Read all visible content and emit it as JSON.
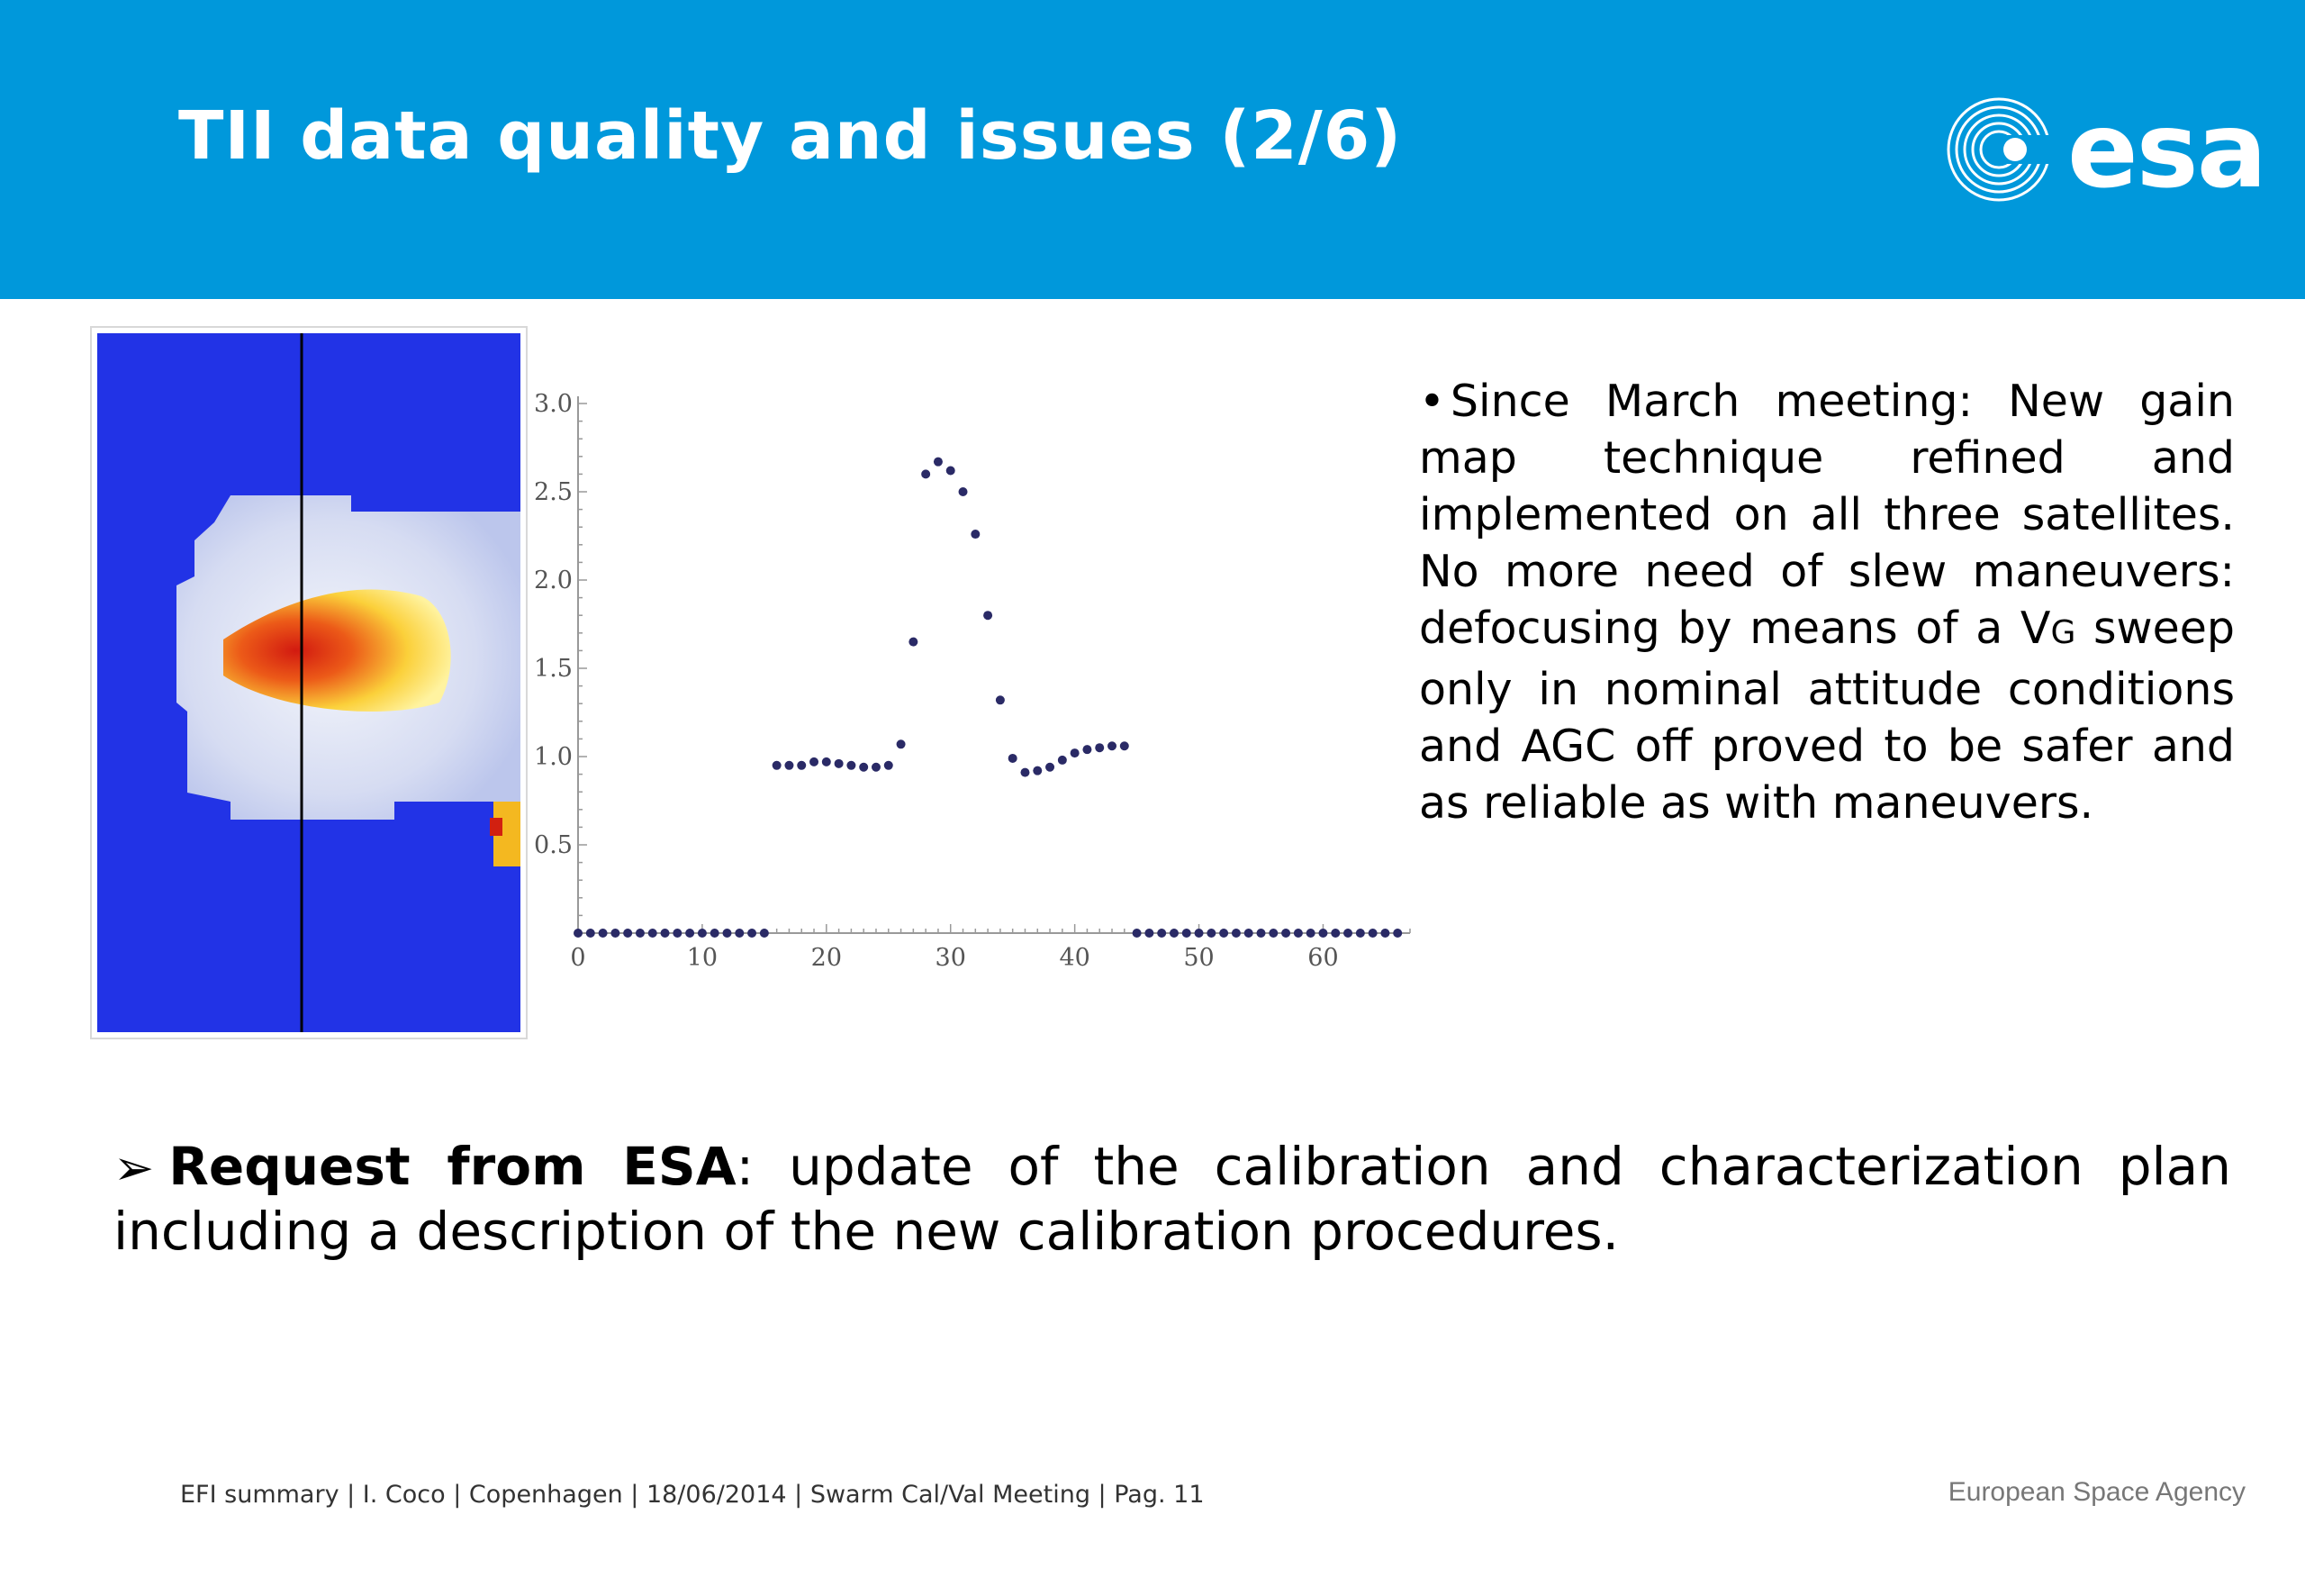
{
  "slide": {
    "title": "TII data quality and issues (2/6)",
    "logo_text": "esa",
    "bullet_pre": "Since March meeting: New gain map technique refined and implemented on all three satellites. No more need of slew maneuvers: defocusing by means of a V",
    "bullet_sub": "G",
    "bullet_post": " sweep only in nominal attitude conditions and AGC off proved to be safer and as reliable as with maneuvers.",
    "request_bold": "Request from ESA",
    "request_rest": ": update of the calibration and characterization plan including a description of the new calibration procedures.",
    "footer": "EFI summary | I. Coco | Copenhagen | 18/06/2014 | Swarm Cal/Val Meeting | Pag. 11",
    "agency": "European Space Agency"
  },
  "colors": {
    "header": "#0098db",
    "heatmap_background": "#2233e6",
    "points": "#2a2a66"
  },
  "chart_data": {
    "type": "scatter",
    "title": "",
    "xlabel": "",
    "ylabel": "",
    "xlim": [
      0,
      67
    ],
    "ylim": [
      0,
      3.0
    ],
    "xticks": [
      0,
      10,
      20,
      30,
      40,
      50,
      60
    ],
    "yticks": [
      0.5,
      1.0,
      1.5,
      2.0,
      2.5,
      3.0
    ],
    "grid": false,
    "x": [
      0,
      1,
      2,
      3,
      4,
      5,
      6,
      7,
      8,
      9,
      10,
      11,
      12,
      13,
      14,
      15,
      16,
      17,
      18,
      19,
      20,
      21,
      22,
      23,
      24,
      25,
      26,
      27,
      28,
      29,
      30,
      31,
      32,
      33,
      34,
      35,
      36,
      37,
      38,
      39,
      40,
      41,
      42,
      43,
      44,
      45,
      46,
      47,
      48,
      49,
      50,
      51,
      52,
      53,
      54,
      55,
      56,
      57,
      58,
      59,
      60,
      61,
      62,
      63,
      64,
      65,
      66
    ],
    "y": [
      0,
      0,
      0,
      0,
      0,
      0,
      0,
      0,
      0,
      0,
      0,
      0,
      0,
      0,
      0,
      0,
      0.95,
      0.95,
      0.95,
      0.97,
      0.97,
      0.96,
      0.95,
      0.94,
      0.94,
      0.95,
      1.07,
      1.65,
      2.6,
      2.67,
      2.62,
      2.5,
      2.26,
      1.8,
      1.32,
      0.99,
      0.91,
      0.92,
      0.94,
      0.98,
      1.02,
      1.04,
      1.05,
      1.06,
      1.06,
      0,
      0,
      0,
      0,
      0,
      0,
      0,
      0,
      0,
      0,
      0,
      0,
      0,
      0,
      0,
      0,
      0,
      0,
      0,
      0,
      0,
      0
    ]
  }
}
